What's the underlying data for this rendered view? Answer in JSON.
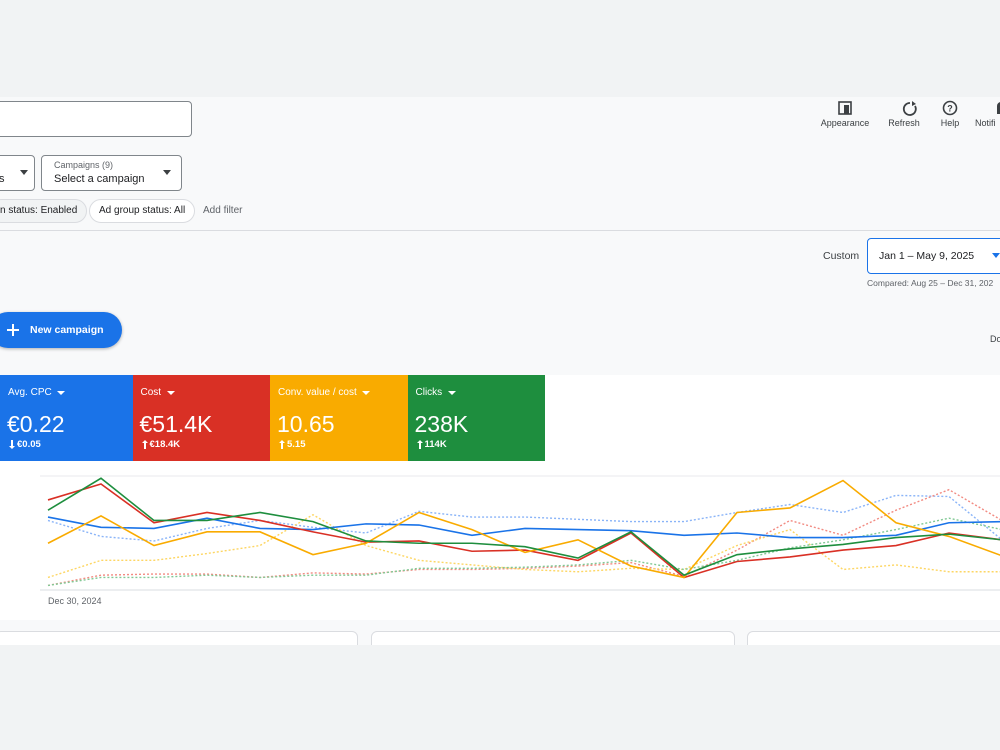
{
  "toolbar": {
    "buttons": [
      "Appearance",
      "Refresh",
      "Help",
      "Notifi"
    ]
  },
  "filters": {
    "level_dropdown": "s",
    "campaign_dropdown": {
      "label": "Campaigns (9)",
      "value": "Select a campaign"
    },
    "chips": [
      "n status: Enabled",
      "Ad group status: All"
    ],
    "add_filter": "Add filter"
  },
  "date_range": {
    "label": "Custom",
    "range": "Jan 1 – May 9, 2025",
    "compared": "Compared: Aug 25 – Dec 31, 202"
  },
  "new_campaign": "New campaign",
  "right_cut_text": "Do",
  "metrics": [
    {
      "name": "Avg. CPC",
      "value": "€0.22",
      "change": "€0.05",
      "direction": "down",
      "color": "#1a73e8"
    },
    {
      "name": "Cost",
      "value": "€51.4K",
      "change": "€18.4K",
      "direction": "up",
      "color": "#d93025"
    },
    {
      "name": "Conv. value / cost",
      "value": "10.65",
      "change": "5.15",
      "direction": "up",
      "color": "#f9ab00"
    },
    {
      "name": "Clicks",
      "value": "238K",
      "change": "114K",
      "direction": "up",
      "color": "#1e8e3e"
    }
  ],
  "chart": {
    "type": "line",
    "x_start_label": "Dec 30, 2024",
    "ylim": [
      0,
      100
    ],
    "series": [
      {
        "color": "#8ab4f8",
        "dashed": true,
        "values": [
          61,
          47,
          43,
          54,
          61,
          55,
          50,
          69,
          64,
          64,
          62,
          60,
          60,
          68,
          75,
          68,
          83,
          82,
          44
        ]
      },
      {
        "color": "#f28b82",
        "dashed": true,
        "values": [
          4,
          13,
          14,
          14,
          11,
          15,
          14,
          18,
          18,
          19,
          21,
          24,
          12,
          35,
          61,
          48,
          70,
          88,
          61
        ]
      },
      {
        "color": "#fdd663",
        "dashed": true,
        "values": [
          11,
          26,
          26,
          32,
          39,
          66,
          39,
          26,
          22,
          18,
          16,
          19,
          18,
          39,
          53,
          18,
          22,
          16,
          16
        ]
      },
      {
        "color": "#81c995",
        "dashed": true,
        "values": [
          4,
          11,
          11,
          13,
          11,
          13,
          13,
          19,
          19,
          20,
          22,
          26,
          18,
          26,
          37,
          44,
          53,
          63,
          53
        ]
      },
      {
        "color": "#1a73e8",
        "dashed": false,
        "values": [
          64,
          55,
          54,
          63,
          54,
          53,
          58,
          57,
          48,
          54,
          53,
          52,
          48,
          50,
          46,
          46,
          48,
          59,
          60
        ]
      },
      {
        "color": "#d93025",
        "dashed": false,
        "values": [
          79,
          93,
          59,
          68,
          61,
          51,
          42,
          43,
          34,
          35,
          26,
          50,
          11,
          25,
          29,
          35,
          39,
          50,
          44
        ]
      },
      {
        "color": "#f9ab00",
        "dashed": false,
        "values": [
          41,
          65,
          39,
          51,
          51,
          31,
          41,
          68,
          53,
          33,
          44,
          21,
          11,
          68,
          72,
          96,
          59,
          47,
          30
        ]
      },
      {
        "color": "#1e8e3e",
        "dashed": false,
        "values": [
          70,
          98,
          61,
          61,
          68,
          60,
          43,
          41,
          41,
          38,
          28,
          51,
          13,
          31,
          36,
          40,
          46,
          49,
          44
        ]
      }
    ]
  }
}
